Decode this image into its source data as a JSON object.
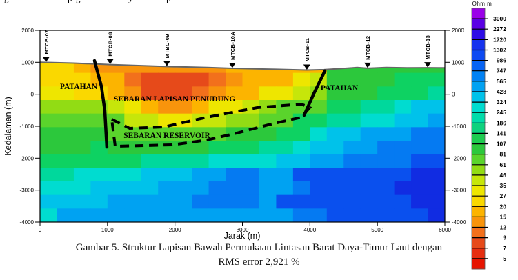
{
  "figure": {
    "top_cropped_fragments": [
      {
        "char": "g",
        "x": 6
      },
      {
        "char": "p",
        "x": 98
      },
      {
        "char": "g",
        "x": 110
      },
      {
        "char": "y",
        "x": 186
      },
      {
        "char": "p",
        "x": 241
      }
    ],
    "caption": {
      "line1": "Gambar 5. Struktur Lapisan Bawah Permukaan Lintasan Barat Daya-Timur Laut dengan",
      "line2": "RMS error 2,921 %"
    }
  },
  "chart_data": {
    "type": "heatmap",
    "description": "2D magnetotelluric resistivity depth section (blocky inversion model) along a SW-NE line",
    "xlabel": "Jarak (m)",
    "ylabel": "Kedalaman (m)",
    "xlim": [
      0,
      6000
    ],
    "ylim": [
      -4000,
      2000
    ],
    "x_ticks": [
      0,
      1000,
      2000,
      3000,
      4000,
      5000,
      6000
    ],
    "y_ticks": [
      2000,
      1000,
      0,
      -1000,
      -2000,
      -3000,
      -4000
    ],
    "grid_lines": false,
    "colorbar": {
      "title": "Ohm.m",
      "tick_values": [
        3000,
        2272,
        1720,
        1302,
        986,
        747,
        565,
        428,
        324,
        245,
        186,
        141,
        107,
        81,
        61,
        46,
        35,
        27,
        20,
        15,
        12,
        9,
        7,
        5
      ],
      "colors_top_to_bottom": [
        "#9a00e8",
        "#5a00e4",
        "#2d0ce6",
        "#1532ee",
        "#0d4af2",
        "#0764f4",
        "#0282f4",
        "#02a2f2",
        "#00c2ea",
        "#00dcd0",
        "#00dcaa",
        "#0ed27e",
        "#1ecc50",
        "#2cc83c",
        "#5ad42c",
        "#92dc14",
        "#c6e60a",
        "#eee600",
        "#fad800",
        "#fcb400",
        "#f8940c",
        "#f2701c",
        "#e64a1a",
        "#e62e10",
        "#e61400"
      ]
    },
    "stations": [
      {
        "label": "MTCB-07",
        "x_m": 90
      },
      {
        "label": "MTCB-08",
        "x_m": 1040
      },
      {
        "label": "MTBC-09",
        "x_m": 1880
      },
      {
        "label": "MTCB-10A",
        "x_m": 2850
      },
      {
        "label": "MTCB-11",
        "x_m": 3955
      },
      {
        "label": "MTCB-12",
        "x_m": 4855
      },
      {
        "label": "MTCB-13",
        "x_m": 5745
      }
    ],
    "annotations": [
      {
        "text": "PATAHAN",
        "x_m": 570,
        "elev_m": 250
      },
      {
        "text": "SEBARAN LAPISAN PENUDUNG",
        "x_m": 1990,
        "elev_m": -140
      },
      {
        "text": "SEBARAN RESERVOIR",
        "x_m": 1880,
        "elev_m": -1280
      },
      {
        "text": "PATAHAN",
        "x_m": 4440,
        "elev_m": 210
      }
    ],
    "faults_m": [
      [
        [
          808,
          1050
        ],
        [
          910,
          250
        ],
        [
          960,
          -500
        ],
        [
          990,
          -1650
        ]
      ],
      [
        [
          4222,
          730
        ],
        [
          4060,
          30
        ],
        [
          3915,
          -655
        ]
      ]
    ],
    "reservoir_outline_m": [
      [
        1063,
        -784
      ],
      [
        1329,
        -1065
      ],
      [
        1840,
        -1022
      ],
      [
        2474,
        -719
      ],
      [
        3220,
        -417
      ],
      [
        3874,
        -309
      ],
      [
        3997,
        -417
      ],
      [
        3874,
        -719
      ],
      [
        3424,
        -935
      ],
      [
        2913,
        -1216
      ],
      [
        2474,
        -1432
      ],
      [
        1963,
        -1583
      ],
      [
        1114,
        -1626
      ]
    ],
    "surface_m": [
      [
        0,
        1000
      ],
      [
        500,
        975
      ],
      [
        1040,
        930
      ],
      [
        1880,
        868
      ],
      [
        2480,
        840
      ],
      [
        2850,
        812
      ],
      [
        3500,
        782
      ],
      [
        3955,
        760
      ],
      [
        4210,
        772
      ],
      [
        4560,
        820
      ],
      [
        4700,
        838
      ],
      [
        4855,
        815
      ],
      [
        5130,
        842
      ],
      [
        5440,
        830
      ],
      [
        5745,
        832
      ],
      [
        6000,
        828
      ]
    ],
    "grid": {
      "rows": 12,
      "cols": 24,
      "palette": {
        "R": "#e64a1a",
        "r": "#f2701c",
        "O": "#f8940c",
        "o": "#fcb400",
        "Y": "#fad800",
        "y": "#eee600",
        "L": "#c6e60a",
        "l": "#92dc14",
        "g": "#5ad42c",
        "G": "#2cc83c",
        "S": "#0ed262",
        "T": "#00d89c",
        "C": "#00dcd0",
        "c": "#00c2ea",
        "b": "#00a2f2",
        "e": "#057af2",
        "B": "#0a50ee",
        "D": "#112ce2"
      },
      "cells": [
        "YYoOOOOOOOOooooooGGGGGGG",
        "YYYoorRRRRrOoooyLGGGGSSS",
        "yyYYoORRRrOooyyLlGGGSSST",
        "llllLyoOOoyyLlgggSSTTCcc",
        "gggggLLyyLLllggSSTTCCccb",
        "GGGGgggggggGGGSSCccbbbee",
        "GGGSGGGGGGSSSTTCccbbeeee",
        "SSSSSSTTTTCCCCccbbeeeeBB",
        "TTCCCCcccbbeebbBBBBBBBDD",
        "CCCccccbbbeeebbeBBBBBDDD",
        "ccccbbbbbeeeebBBBBBBBBDD",
        "CbbbbbbbbbbbbbbeeBBBBBBD"
      ]
    }
  }
}
